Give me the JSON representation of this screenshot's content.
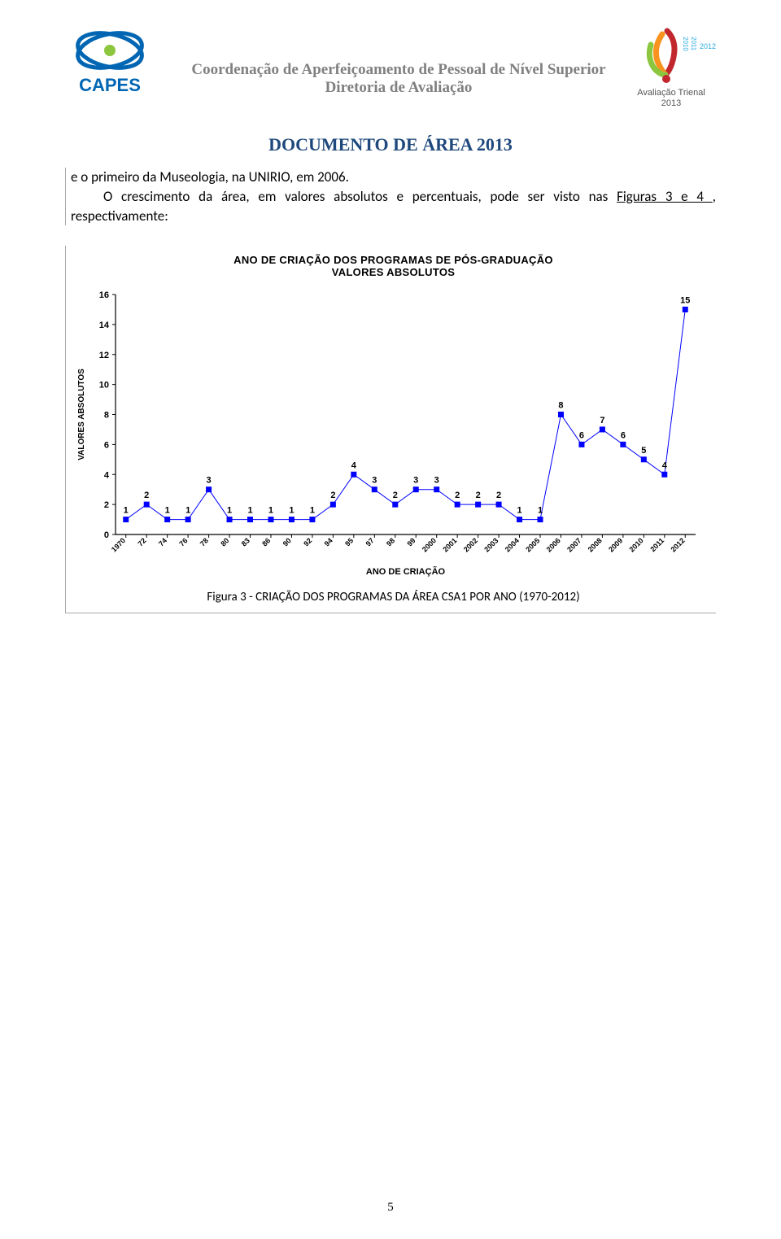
{
  "header": {
    "line1": "Coordenação de Aperfeiçoamento de Pessoal de Nível Superior",
    "line2": "Diretoria de Avaliação",
    "logo_left_label": "CAPES",
    "logo_right_label": "Avaliação Trienal",
    "logo_right_year": "2013"
  },
  "doc_title": "DOCUMENTO DE ÁREA 2013",
  "body": {
    "p1_a": "e o primeiro da Museologia, na UNIRIO, em 2006.",
    "p2_a": "O crescimento da área, em valores absolutos e percentuais, pode ser visto nas ",
    "p2_link": "Figuras 3 e 4 ",
    "p2_b": ", respectivamente:"
  },
  "chart": {
    "type": "scatter-line",
    "title_line1": "ANO DE CRIAÇÃO DOS PROGRAMAS DE PÓS-GRADUAÇÃO",
    "title_line2": "VALORES ABSOLUTOS",
    "y_label": "VALORES ABSOLUTOS",
    "x_label": "ANO DE CRIAÇÃO",
    "x_categories": [
      "1970",
      "72",
      "74",
      "76",
      "78",
      "80",
      "83",
      "86",
      "90",
      "92",
      "94",
      "95",
      "97",
      "98",
      "99",
      "2000",
      "2001",
      "2002",
      "2003",
      "2004",
      "2005",
      "2006",
      "2007",
      "2008",
      "2009",
      "2010",
      "2011",
      "2012"
    ],
    "values": [
      1,
      2,
      1,
      1,
      3,
      1,
      1,
      1,
      1,
      1,
      2,
      4,
      3,
      2,
      3,
      3,
      2,
      2,
      2,
      1,
      1,
      8,
      6,
      7,
      6,
      5,
      4,
      15
    ],
    "ylim": [
      0,
      16
    ],
    "ytick_step": 2,
    "marker_color": "#0000ff",
    "line_color": "#0000ff",
    "axis_color": "#000000",
    "label_fontsize": 10,
    "value_fontsize": 11,
    "title_fontsize": 13,
    "background_color": "#ffffff",
    "marker_size": 7,
    "line_width": 1
  },
  "caption": "Figura 3 -  CRIAÇÃO DOS PROGRAMAS DA ÁREA CSA1 POR ANO (1970-2012)",
  "page_number": "5"
}
